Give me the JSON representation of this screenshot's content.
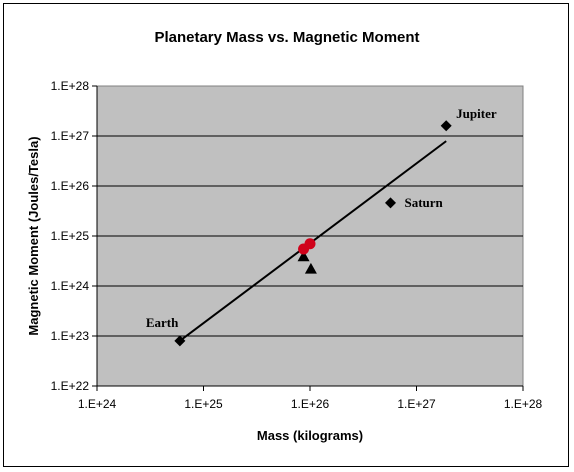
{
  "chart_data": {
    "type": "scatter",
    "title": "Planetary Mass vs. Magnetic Moment",
    "xlabel": "Mass (kilograms)",
    "ylabel": "Magnetic Moment (Joules/Tesla)",
    "xscale": "log",
    "yscale": "log",
    "xlim": [
      1e+24,
      1e+28
    ],
    "ylim": [
      1e+22,
      1e+28
    ],
    "x_ticks": [
      1e+24,
      1e+25,
      1e+26,
      1e+27,
      1e+28
    ],
    "x_tick_labels": [
      "1.E+24",
      "1.E+25",
      "1.E+26",
      "1.E+27",
      "1.E+28"
    ],
    "y_ticks": [
      1e+22,
      1e+23,
      1e+24,
      1e+25,
      1e+26,
      1e+27,
      1e+28
    ],
    "y_tick_labels": [
      "1.E+22",
      "1.E+23",
      "1.E+24",
      "1.E+25",
      "1.E+26",
      "1.E+27",
      "1.E+28"
    ],
    "grid": "horizontal",
    "legend": "none",
    "plot_background": "#c0c0c0",
    "series": [
      {
        "marker": "diamond",
        "color": "#000000",
        "points": [
          {
            "x": 6e+24,
            "y": 8e+22,
            "label": "Earth"
          },
          {
            "x": 5.7e+26,
            "y": 4.6e+25,
            "label": "Saturn"
          },
          {
            "x": 1.9e+27,
            "y": 1.6e+27,
            "label": "Jupiter"
          }
        ]
      },
      {
        "marker": "triangle",
        "color": "#000000",
        "points": [
          {
            "x": 8.7e+25,
            "y": 3.9e+24
          },
          {
            "x": 1.02e+26,
            "y": 2.2e+24
          }
        ]
      },
      {
        "marker": "circle",
        "color": "#d0021b",
        "points": [
          {
            "x": 8.7e+25,
            "y": 5.5e+24
          },
          {
            "x": 1e+26,
            "y": 7e+24
          }
        ]
      }
    ],
    "fit_line": {
      "color": "#000000",
      "points": [
        {
          "x": 6e+24,
          "y": 8e+22
        },
        {
          "x": 1.9e+27,
          "y": 7.9e+26
        }
      ]
    }
  }
}
